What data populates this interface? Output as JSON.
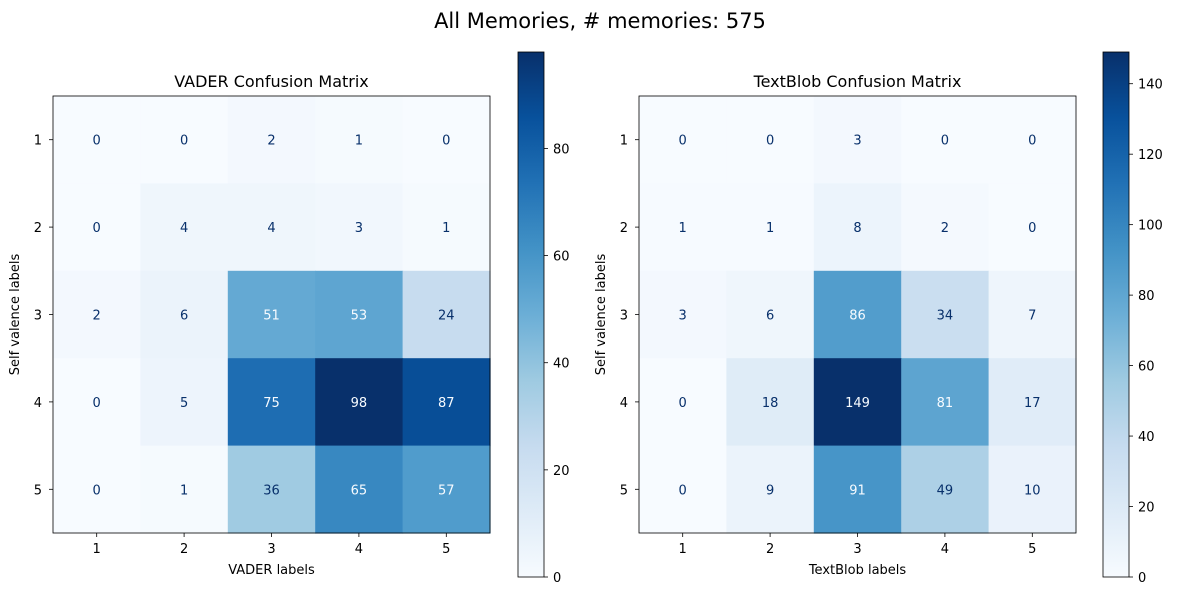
{
  "figure": {
    "suptitle": "All Memories, # memories: 575"
  },
  "chart_data": [
    {
      "type": "heatmap",
      "title": "VADER Confusion Matrix",
      "xlabel": "VADER labels",
      "ylabel": "Self valence labels",
      "x_categories": [
        "1",
        "2",
        "3",
        "4",
        "5"
      ],
      "y_categories": [
        "1",
        "2",
        "3",
        "4",
        "5"
      ],
      "matrix": [
        [
          0,
          0,
          2,
          1,
          0
        ],
        [
          0,
          4,
          4,
          3,
          1
        ],
        [
          2,
          6,
          51,
          53,
          24
        ],
        [
          0,
          5,
          75,
          98,
          87
        ],
        [
          0,
          1,
          36,
          65,
          57
        ]
      ],
      "colormap": "Blues",
      "colorbar": {
        "min": 0,
        "max": 98,
        "ticks": [
          0,
          20,
          40,
          60,
          80
        ]
      }
    },
    {
      "type": "heatmap",
      "title": "TextBlob Confusion Matrix",
      "xlabel": "TextBlob labels",
      "ylabel": "Self valence labels",
      "x_categories": [
        "1",
        "2",
        "3",
        "4",
        "5"
      ],
      "y_categories": [
        "1",
        "2",
        "3",
        "4",
        "5"
      ],
      "matrix": [
        [
          0,
          0,
          3,
          0,
          0
        ],
        [
          1,
          1,
          8,
          2,
          0
        ],
        [
          3,
          6,
          86,
          34,
          7
        ],
        [
          0,
          18,
          149,
          81,
          17
        ],
        [
          0,
          9,
          91,
          49,
          10
        ]
      ],
      "colormap": "Blues",
      "colorbar": {
        "min": 0,
        "max": 149,
        "ticks": [
          0,
          20,
          40,
          60,
          80,
          100,
          120,
          140
        ]
      }
    }
  ]
}
